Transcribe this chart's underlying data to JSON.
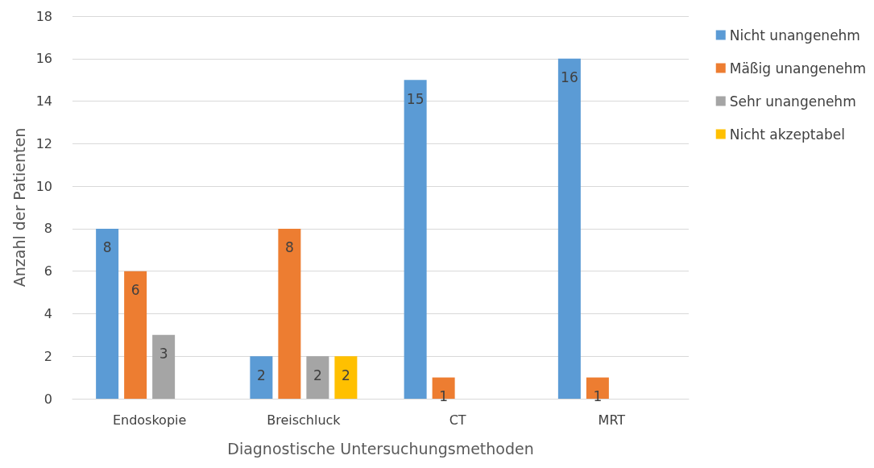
{
  "chart_data": {
    "type": "bar",
    "xlabel": "Diagnostische Untersuchungsmethoden",
    "ylabel": "Anzahl der Patienten",
    "categories": [
      "Endoskopie",
      "Breischluck",
      "CT",
      "MRT"
    ],
    "series": [
      {
        "name": "Nicht unangenehm",
        "color": "#5b9bd5",
        "values": [
          8,
          2,
          15,
          16
        ]
      },
      {
        "name": "Mäßig unangenehm",
        "color": "#ed7d31",
        "values": [
          6,
          8,
          1,
          1
        ]
      },
      {
        "name": "Sehr unangenehm",
        "color": "#a5a5a5",
        "values": [
          3,
          2,
          null,
          null
        ]
      },
      {
        "name": "Nicht akzeptabel",
        "color": "#ffc000",
        "values": [
          null,
          2,
          null,
          null
        ]
      }
    ],
    "ylim": [
      0,
      18
    ],
    "yticks": [
      0,
      2,
      4,
      6,
      8,
      10,
      12,
      14,
      16,
      18
    ],
    "grid": "y",
    "legend": "right",
    "data_labels": true
  }
}
